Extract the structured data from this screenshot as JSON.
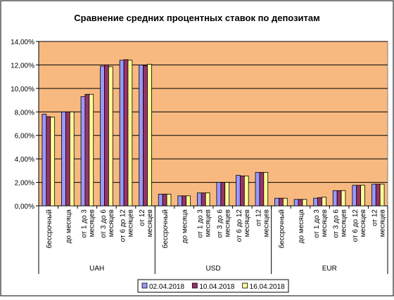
{
  "chart_data": {
    "type": "bar",
    "title": "Сравнение средних процентных ставок по депозитам",
    "categories": [
      [
        "бессрочный"
      ],
      [
        "до месяца"
      ],
      [
        "от 1 до 3",
        "месяцев"
      ],
      [
        "от 3 до 6",
        "месяцев"
      ],
      [
        "от 6 до 12",
        "месяцев"
      ],
      [
        "от 12",
        "месяцев"
      ],
      [
        "бессрочный"
      ],
      [
        "до месяца"
      ],
      [
        "от 1 до 3",
        "месяцев"
      ],
      [
        "от 3 до 6",
        "месяцев"
      ],
      [
        "от 6 до 12",
        "месяцев"
      ],
      [
        "от 12",
        "месяцев"
      ],
      [
        "бессрочный"
      ],
      [
        "до месяца"
      ],
      [
        "от 1 до 3",
        "месяцев"
      ],
      [
        "от 3 до 6",
        "месяцев"
      ],
      [
        "от 6 до 12",
        "месяцев"
      ],
      [
        "от 12",
        "месяцев"
      ]
    ],
    "groups": [
      {
        "label": "UAH",
        "count": 6
      },
      {
        "label": "USD",
        "count": 6
      },
      {
        "label": "EUR",
        "count": 6
      }
    ],
    "series": [
      {
        "name": "02.04.2018",
        "color": "#9999ff",
        "values": [
          7.8,
          8.0,
          9.3,
          11.9,
          12.4,
          12.0,
          1.0,
          0.85,
          1.1,
          2.0,
          2.6,
          2.85,
          0.65,
          0.55,
          0.65,
          1.3,
          1.75,
          1.85
        ]
      },
      {
        "name": "10.04.2018",
        "color": "#993366",
        "values": [
          7.6,
          8.0,
          9.5,
          12.0,
          12.45,
          11.95,
          1.0,
          0.85,
          1.1,
          2.0,
          2.55,
          2.85,
          0.65,
          0.55,
          0.7,
          1.3,
          1.75,
          1.85
        ]
      },
      {
        "name": "16.04.2018",
        "color": "#ffff99",
        "values": [
          7.55,
          8.0,
          9.5,
          11.85,
          12.4,
          12.05,
          1.0,
          0.85,
          1.1,
          2.0,
          2.55,
          2.85,
          0.65,
          0.55,
          0.75,
          1.3,
          1.75,
          1.85
        ]
      }
    ],
    "ylim": [
      0,
      14
    ],
    "yticks": [
      "0,00%",
      "2,00%",
      "4,00%",
      "6,00%",
      "8,00%",
      "10,00%",
      "12,00%",
      "14,00%"
    ],
    "grid": true,
    "legend_position": "bottom",
    "plot_background": "#f7b980"
  }
}
